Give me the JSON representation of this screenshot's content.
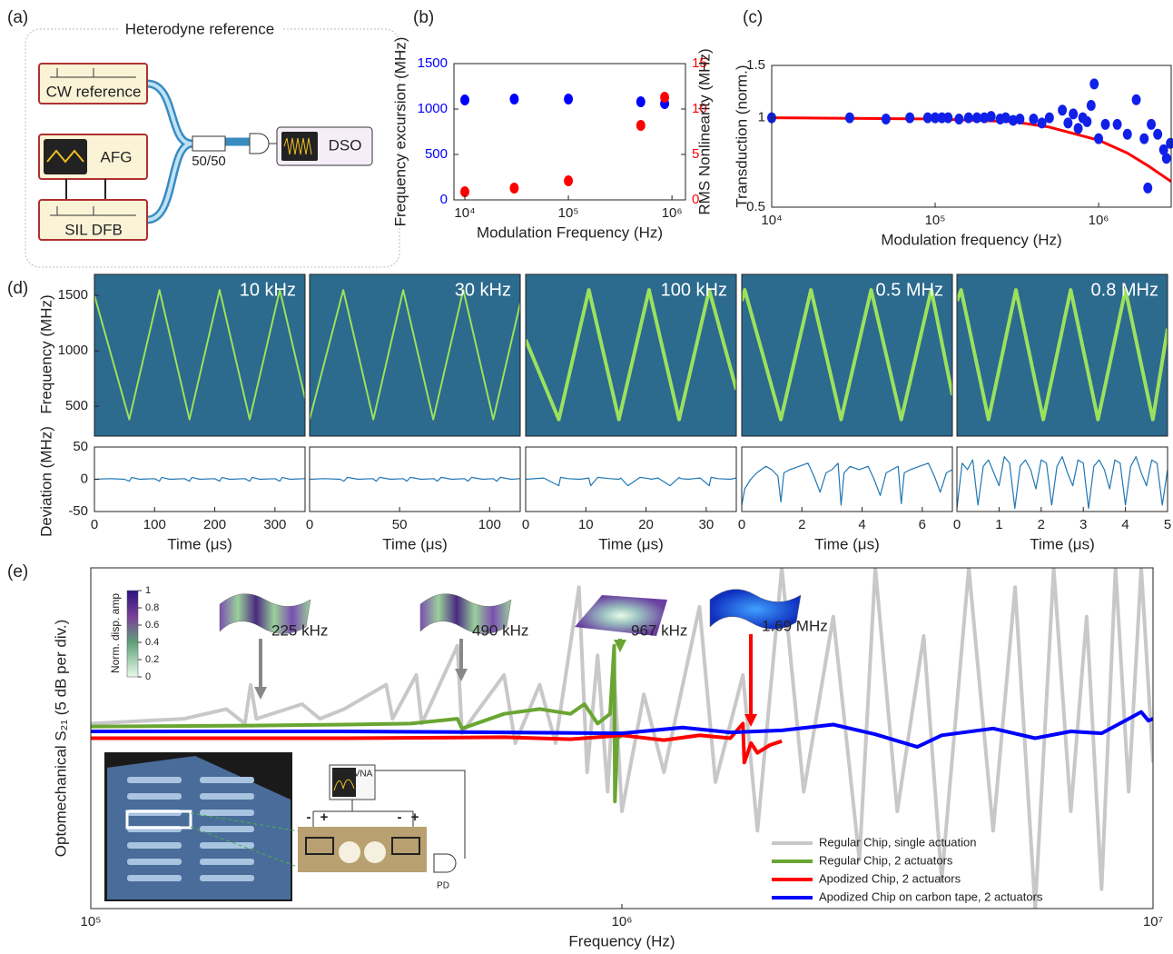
{
  "diagram": {
    "panel_label": "(a)",
    "title": "Heterodyne reference",
    "nodes": [
      {
        "label": "CW reference"
      },
      {
        "label": "AFG"
      },
      {
        "label": "SIL DFB"
      },
      {
        "label": "50/50"
      },
      {
        "label": "DSO"
      }
    ]
  },
  "chart_data": [
    {
      "type": "scatter",
      "panel_label": "(b)",
      "xlabel": "Modulation Frequency (Hz)",
      "ylabel": "Frequency excursion (MHz)",
      "y2label": "RMS Nonlinearity (MHz)",
      "xlog": true,
      "xlim": [
        7850,
        1350000
      ],
      "xticks": [
        {
          "value": 10000,
          "label": "10⁴"
        },
        {
          "value": 100000,
          "label": "10⁵"
        },
        {
          "value": 1000000,
          "label": "10⁶"
        }
      ],
      "ylim": [
        0,
        1500
      ],
      "yticks": [
        0,
        500,
        1000,
        1500
      ],
      "y2lim": [
        0,
        15
      ],
      "y2ticks": [
        0,
        5,
        10,
        15
      ],
      "series": [
        {
          "color": "#0000ff",
          "mode": "markers",
          "x": [
            10000,
            30000,
            100000,
            500000,
            850000
          ],
          "values": [
            1100,
            1110,
            1110,
            1080,
            1060
          ]
        },
        {
          "color": "#ff0000",
          "mode": "markers",
          "axis": "y2",
          "x": [
            10000,
            30000,
            100000,
            500000,
            850000
          ],
          "values": [
            0.9,
            1.3,
            2.1,
            8.2,
            11.3
          ]
        }
      ]
    },
    {
      "type": "scatter",
      "panel_label": "(c)",
      "xlabel": "Modulation frequency (Hz)",
      "ylabel": "Transduction (norm.)",
      "xlog": true,
      "ylog": true,
      "xlim": [
        10000,
        2780000
      ],
      "xticks": [
        {
          "value": 10000,
          "label": "10⁴"
        },
        {
          "value": 100000,
          "label": "10⁵"
        },
        {
          "value": 1000000,
          "label": "10⁶"
        }
      ],
      "ylim": [
        0.5,
        1.5
      ],
      "yticks": [
        0.5,
        1,
        1.5
      ],
      "series": [
        {
          "color": "#ff0000",
          "mode": "lines",
          "x": [
            10000,
            100000,
            300000,
            500000,
            1000000,
            1500000,
            2000000,
            2780000
          ],
          "values": [
            1,
            0.99,
            0.97,
            0.93,
            0.84,
            0.76,
            0.69,
            0.61
          ]
        },
        {
          "color": "#1020e8",
          "mode": "markers",
          "x": [
            10000,
            30000,
            50000,
            70000,
            90000,
            100000,
            110000,
            120000,
            140000,
            160000,
            180000,
            200000,
            220000,
            250000,
            270000,
            300000,
            330000,
            400000,
            450000,
            500000,
            600000,
            650000,
            700000,
            750000,
            800000,
            850000,
            900000,
            940000,
            1000000,
            1100000,
            1300000,
            1500000,
            1700000,
            1900000,
            2000000,
            2100000,
            2300000,
            2500000,
            2600000,
            2750000
          ],
          "values": [
            1,
            1,
            0.99,
            1,
            1,
            1,
            1,
            1,
            0.99,
            1,
            1,
            1,
            1.01,
            0.99,
            1,
            0.98,
            0.99,
            0.99,
            0.96,
            1,
            1.06,
            0.96,
            1.03,
            0.92,
            1,
            0.97,
            1.1,
            1.3,
            0.85,
            0.95,
            0.95,
            0.88,
            1.15,
            0.85,
            0.58,
            0.95,
            0.88,
            0.78,
            0.73,
            0.82
          ]
        }
      ]
    },
    {
      "type": "spectrogram",
      "panel_label": "(d)",
      "ylabel": "Frequency (MHz)",
      "annotation": "10 kHz",
      "color": "#9be15d",
      "xlim": [
        0,
        350
      ],
      "ylim": [
        230,
        1690
      ],
      "yticks": [
        500,
        1000,
        1500
      ],
      "x": [
        0,
        58,
        108,
        158,
        208,
        258,
        308,
        350
      ],
      "values": [
        1500,
        380,
        1550,
        380,
        1550,
        380,
        1550,
        570
      ]
    },
    {
      "type": "spectrogram",
      "annotation": "30 kHz",
      "color": "#9be15d",
      "xlim": [
        0,
        117
      ],
      "ylim": [
        230,
        1690
      ],
      "x": [
        0,
        18.7,
        35.4,
        52,
        68.7,
        85.4,
        102,
        117
      ],
      "values": [
        380,
        1550,
        380,
        1550,
        380,
        1550,
        380,
        1430
      ]
    },
    {
      "type": "spectrogram",
      "annotation": "100 kHz",
      "color": "#9be15d",
      "xlim": [
        0,
        35
      ],
      "ylim": [
        230,
        1690
      ],
      "x": [
        0,
        5.5,
        10.5,
        15.5,
        20.5,
        25.5,
        30.5,
        35
      ],
      "values": [
        1100,
        380,
        1550,
        380,
        1550,
        380,
        1550,
        650
      ]
    },
    {
      "type": "spectrogram",
      "annotation": "0.5 MHz",
      "color": "#9be15d",
      "xlim": [
        0,
        7
      ],
      "ylim": [
        230,
        1690
      ],
      "x": [
        0,
        0.1,
        1.3,
        2.3,
        3.3,
        4.3,
        5.3,
        6.3,
        7
      ],
      "values": [
        1450,
        1550,
        380,
        1550,
        380,
        1550,
        380,
        1550,
        600
      ]
    },
    {
      "type": "spectrogram",
      "annotation": "0.8 MHz",
      "color": "#9be15d",
      "xlim": [
        0,
        5
      ],
      "ylim": [
        230,
        1690
      ],
      "x": [
        0,
        0.1,
        0.75,
        1.4,
        2.05,
        2.7,
        3.35,
        4,
        4.65,
        5
      ],
      "values": [
        1450,
        1550,
        380,
        1550,
        380,
        1550,
        380,
        1550,
        380,
        1200
      ]
    },
    {
      "type": "line",
      "ylabel": "Deviation (MHz)",
      "xlabel": "Time (μs)",
      "color": "#1f77b4",
      "xlim": [
        0,
        350
      ],
      "xticks": [
        0,
        100,
        200,
        300
      ],
      "ylim": [
        -50,
        50
      ],
      "yticks": [
        -50,
        0,
        50
      ],
      "x": [
        0,
        25,
        50,
        58,
        62,
        75,
        100,
        108,
        112,
        125,
        150,
        158,
        162,
        175,
        200,
        208,
        212,
        225,
        250,
        258,
        262,
        275,
        300,
        308,
        312,
        325,
        350
      ],
      "values": [
        0,
        1,
        0,
        -3,
        3,
        0,
        1,
        -3,
        3,
        0,
        1,
        -3,
        3,
        0,
        1,
        -3,
        3,
        0,
        1,
        -3,
        3,
        0,
        1,
        -3,
        3,
        0,
        1
      ]
    },
    {
      "type": "line",
      "xlabel": "Time (μs)",
      "color": "#1f77b4",
      "xlim": [
        0,
        117
      ],
      "xticks": [
        0,
        50,
        100
      ],
      "ylim": [
        -50,
        50
      ],
      "x": [
        0,
        8,
        17,
        19,
        21,
        27,
        35,
        37,
        39,
        45,
        52,
        54,
        56,
        62,
        69,
        71,
        73,
        79,
        86,
        88,
        90,
        96,
        102,
        104,
        106,
        112,
        117
      ],
      "values": [
        0,
        1,
        0,
        -3,
        3,
        0,
        1,
        -3,
        3,
        0,
        1,
        -3,
        3,
        0,
        1,
        -3,
        3,
        0,
        1,
        -3,
        3,
        0,
        1,
        -3,
        3,
        0,
        1
      ]
    },
    {
      "type": "line",
      "xlabel": "Time (μs)",
      "color": "#1f77b4",
      "xlim": [
        0,
        35
      ],
      "xticks": [
        0,
        10,
        20,
        30
      ],
      "ylim": [
        -50,
        50
      ],
      "x": [
        0,
        3,
        5.5,
        5.8,
        7,
        9,
        10.5,
        10.8,
        12,
        14,
        15.5,
        15.8,
        17,
        19,
        20.5,
        20.8,
        22,
        24,
        25.5,
        25.8,
        27,
        29,
        30.5,
        30.8,
        32,
        34,
        35
      ],
      "values": [
        0,
        2,
        -10,
        3,
        1,
        0,
        2,
        -10,
        3,
        1,
        0,
        2,
        -10,
        3,
        1,
        0,
        2,
        -10,
        3,
        1,
        0,
        2,
        -10,
        3,
        1,
        0,
        2
      ]
    },
    {
      "type": "line",
      "xlabel": "Time (μs)",
      "color": "#1f77b4",
      "xlim": [
        0,
        7
      ],
      "xticks": [
        0,
        2,
        4,
        6
      ],
      "ylim": [
        -50,
        50
      ],
      "x": [
        0,
        0.1,
        0.3,
        0.5,
        0.8,
        1.0,
        1.2,
        1.3,
        1.4,
        1.6,
        1.9,
        2.2,
        2.4,
        2.6,
        2.8,
        3.0,
        3.2,
        3.3,
        3.4,
        3.6,
        3.9,
        4.2,
        4.4,
        4.6,
        4.8,
        5.0,
        5.2,
        5.3,
        5.4,
        5.6,
        5.9,
        6.2,
        6.4,
        6.6,
        6.8,
        7.0
      ],
      "values": [
        -40,
        -15,
        0,
        10,
        20,
        15,
        5,
        -35,
        10,
        15,
        20,
        25,
        5,
        -20,
        10,
        15,
        25,
        -40,
        10,
        20,
        15,
        20,
        0,
        -25,
        10,
        15,
        20,
        -38,
        10,
        15,
        20,
        25,
        5,
        -20,
        10,
        15
      ]
    },
    {
      "type": "line",
      "xlabel": "Time (μs)",
      "color": "#1f77b4",
      "xlim": [
        0,
        5
      ],
      "xticks": [
        0,
        1,
        2,
        3,
        4,
        5
      ],
      "ylim": [
        -50,
        50
      ],
      "x": [
        0,
        0.125,
        0.25,
        0.375,
        0.5,
        0.625,
        0.75,
        0.875,
        1,
        1.125,
        1.25,
        1.375,
        1.5,
        1.625,
        1.75,
        1.875,
        2,
        2.125,
        2.25,
        2.375,
        2.5,
        2.625,
        2.75,
        2.875,
        3,
        3.125,
        3.25,
        3.375,
        3.5,
        3.625,
        3.75,
        3.875,
        4,
        4.125,
        4.25,
        4.375,
        4.5,
        4.625,
        4.75,
        4.875,
        5
      ],
      "values": [
        -45,
        25,
        15,
        30,
        -40,
        20,
        30,
        10,
        -10,
        35,
        25,
        -45,
        20,
        30,
        15,
        -15,
        30,
        25,
        -40,
        20,
        35,
        10,
        -10,
        30,
        25,
        -45,
        20,
        30,
        15,
        -15,
        30,
        25,
        -40,
        20,
        35,
        10,
        -10,
        30,
        25,
        -40,
        15
      ]
    },
    {
      "type": "line",
      "panel_label": "(e)",
      "xlabel": "Frequency (Hz)",
      "ylabel": "Optomechanical S₂₁ (5 dB per div.)",
      "xlog": true,
      "xlim": [
        100000,
        10000000
      ],
      "xticks": [
        {
          "value": 100000,
          "label": "10⁵"
        },
        {
          "value": 1000000,
          "label": "10⁶"
        },
        {
          "value": 10000000,
          "label": "10⁷"
        }
      ],
      "ylim": [
        0,
        35
      ],
      "legend": "lower right",
      "annotations": [
        "225 kHz",
        "490 kHz",
        "967 kHz",
        "1.69 MHz"
      ],
      "inset_labels": [
        "VNA",
        "PD",
        "-",
        "+",
        "-",
        "+"
      ],
      "colorbar": {
        "label": "Norm. disp. amp",
        "lim": [
          0,
          1
        ],
        "ticks": [
          0,
          0.2,
          0.4,
          0.6,
          0.8,
          1
        ]
      },
      "series": [
        {
          "name": "Regular Chip, single actuation",
          "color": "#c8c8c8",
          "x": [
            100000,
            150000,
            180000,
            195000,
            200000,
            205000,
            250000,
            270000,
            300000,
            360000,
            370000,
            410000,
            420000,
            490000,
            500000,
            530000,
            600000,
            630000,
            700000,
            750000,
            830000,
            860000,
            900000,
            940000,
            967000,
            1000000,
            1100000,
            1200000,
            1400000,
            1500000,
            1690000,
            1800000,
            2000000,
            2200000,
            2500000,
            2800000,
            3000000,
            3300000,
            3700000,
            4000000,
            4500000,
            5000000,
            5500000,
            6000000,
            6500000,
            7000000,
            7500000,
            8000000,
            8500000,
            9000000,
            9500000,
            10000000
          ],
          "values": [
            19,
            19.5,
            20.5,
            19,
            23,
            19.5,
            21,
            19.5,
            20.5,
            23,
            19.5,
            24,
            19,
            27,
            18,
            20,
            24,
            17,
            23,
            17,
            33,
            14,
            26,
            12,
            24,
            10,
            22,
            14,
            31,
            13,
            24,
            8,
            35,
            12,
            30,
            5,
            35,
            10,
            28,
            3,
            35,
            8,
            33,
            0,
            35,
            10,
            30,
            2,
            35,
            12,
            35,
            15
          ]
        },
        {
          "name": "Regular Chip, 2 actuators",
          "color": "#6aa532",
          "x": [
            100000,
            200000,
            300000,
            400000,
            490000,
            500000,
            600000,
            700000,
            800000,
            850000,
            900000,
            950000,
            967000,
            970000,
            980000,
            1000000
          ],
          "values": [
            18.7,
            18.8,
            18.9,
            19,
            19.5,
            18.5,
            20,
            20.5,
            20,
            21,
            19,
            20,
            27,
            11,
            17.5,
            17.8
          ]
        },
        {
          "name": "Apodized Chip, 2 actuators",
          "color": "#ff0000",
          "x": [
            100000,
            300000,
            600000,
            800000,
            1000000,
            1200000,
            1400000,
            1600000,
            1690000,
            1700000,
            1750000,
            1800000,
            1900000,
            2000000
          ],
          "values": [
            17.5,
            17.5,
            17.6,
            17.4,
            17.8,
            17.3,
            17.8,
            17.5,
            19,
            15,
            17,
            16,
            16.8,
            17.2
          ]
        },
        {
          "name": "Apodized Chip on carbon tape, 2 actuators",
          "color": "#0000ff",
          "x": [
            100000,
            300000,
            600000,
            1000000,
            1300000,
            1600000,
            2000000,
            2500000,
            3000000,
            3600000,
            4000000,
            5000000,
            6000000,
            7000000,
            8000000,
            9000000,
            9500000,
            9800000,
            10000000
          ],
          "values": [
            18.2,
            18.2,
            18.1,
            18,
            18.6,
            18.1,
            18.3,
            18.9,
            17.9,
            16.6,
            17.8,
            18.5,
            17.5,
            18.2,
            18,
            19.5,
            20.2,
            19.3,
            19.5
          ]
        }
      ]
    }
  ]
}
